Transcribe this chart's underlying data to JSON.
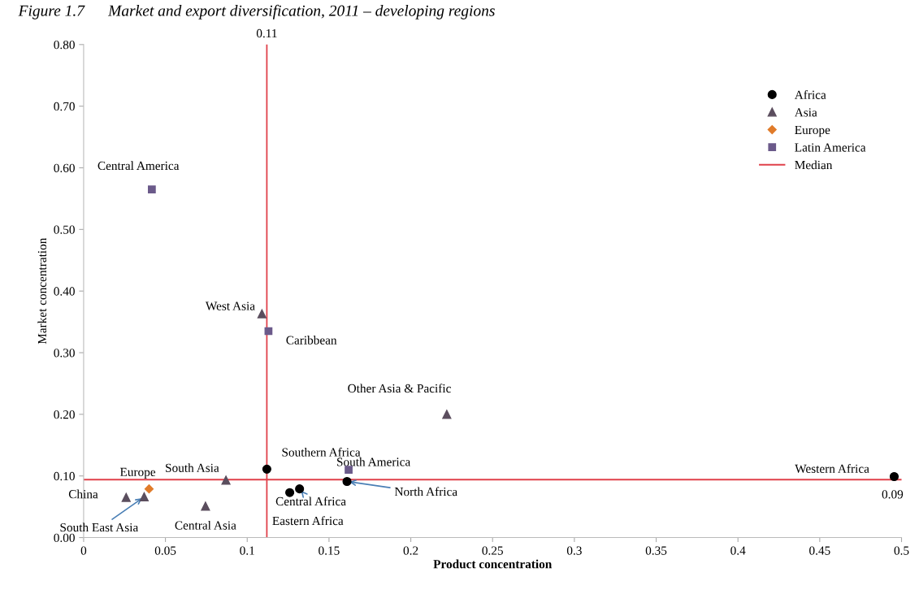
{
  "chart_data": {
    "type": "scatter",
    "title": "Figure 1.7      Market and export diversification, 2011 – developing regions",
    "xlabel": "Product concentration",
    "ylabel": "Market concentration",
    "xlim": [
      0,
      0.5
    ],
    "ylim": [
      0,
      0.8
    ],
    "xticks": [
      0,
      0.05,
      0.1,
      0.15,
      0.2,
      0.25,
      0.3,
      0.35,
      0.4,
      0.45,
      0.5
    ],
    "yticks": [
      {
        "value": 0,
        "label": "0.00"
      },
      {
        "value": 0.1,
        "label": "0.10"
      },
      {
        "value": 0.2,
        "label": "0.20"
      },
      {
        "value": 0.3,
        "label": "0.30"
      },
      {
        "value": 0.4,
        "label": "0.40"
      },
      {
        "value": 0.5,
        "label": "0.50"
      },
      {
        "value": 0.6,
        "label": "0.60"
      },
      {
        "value": 0.7,
        "label": "0.70"
      },
      {
        "value": 0.8,
        "label": "0.80"
      }
    ],
    "grid": false,
    "legend": "top right",
    "series": [
      {
        "name": "Africa",
        "color": "#000000",
        "marker": "circle",
        "x": [
          0.112,
          0.161,
          0.126,
          0.132,
          0.4955
        ],
        "values": [
          0.111,
          0.091,
          0.073,
          0.079,
          0.099
        ]
      },
      {
        "name": "Asia",
        "color": "#5b4e5e",
        "marker": "triangle",
        "x": [
          0.109,
          0.222,
          0.087,
          0.026,
          0.037,
          0.0745
        ],
        "values": [
          0.363,
          0.2,
          0.093,
          0.065,
          0.066,
          0.051
        ]
      },
      {
        "name": "Europe",
        "color": "#e07b2a",
        "marker": "diamond",
        "x": [
          0.04
        ],
        "values": [
          0.079
        ]
      },
      {
        "name": "Latin America",
        "color": "#6b5a8a",
        "marker": "square",
        "x": [
          0.0417,
          0.113,
          0.162
        ],
        "values": [
          0.565,
          0.335,
          0.11
        ]
      },
      {
        "name": "Median",
        "type": "line",
        "marker": "none",
        "color": "#e0404a",
        "x": [
          0.112,
          0.112
        ],
        "values": [
          0,
          0.8
        ]
      },
      {
        "type": "line",
        "marker": "none",
        "color": "#e0404a",
        "x": [
          0,
          0.5
        ],
        "values": [
          0.094,
          0.094
        ]
      }
    ],
    "annotations": [
      {
        "text": "0.11",
        "x": 0.112,
        "y": 0.8
      },
      {
        "text": "0.09",
        "x": 0.5,
        "y": 0.094
      },
      {
        "text": "Central America",
        "x": 0.0417,
        "y": 0.565
      },
      {
        "text": "West Asia",
        "x": 0.109,
        "y": 0.363
      },
      {
        "text": "Caribbean",
        "x": 0.113,
        "y": 0.335
      },
      {
        "text": "Other Asia & Pacific",
        "x": 0.222,
        "y": 0.2
      },
      {
        "text": "Southern Africa",
        "x": 0.112,
        "y": 0.111
      },
      {
        "text": "South America",
        "x": 0.162,
        "y": 0.11
      },
      {
        "text": "North Africa",
        "x": 0.161,
        "y": 0.091
      },
      {
        "text": "Central Africa",
        "x": 0.132,
        "y": 0.079
      },
      {
        "text": "Eastern Africa",
        "x": 0.126,
        "y": 0.073
      },
      {
        "text": "Western Africa",
        "x": 0.4955,
        "y": 0.099
      },
      {
        "text": "South Asia",
        "x": 0.087,
        "y": 0.093
      },
      {
        "text": "Europe",
        "x": 0.04,
        "y": 0.079
      },
      {
        "text": "China",
        "x": 0.026,
        "y": 0.065
      },
      {
        "text": "South East Asia",
        "x": 0.037,
        "y": 0.066
      },
      {
        "text": "Central Asia",
        "x": 0.0745,
        "y": 0.051
      }
    ]
  }
}
